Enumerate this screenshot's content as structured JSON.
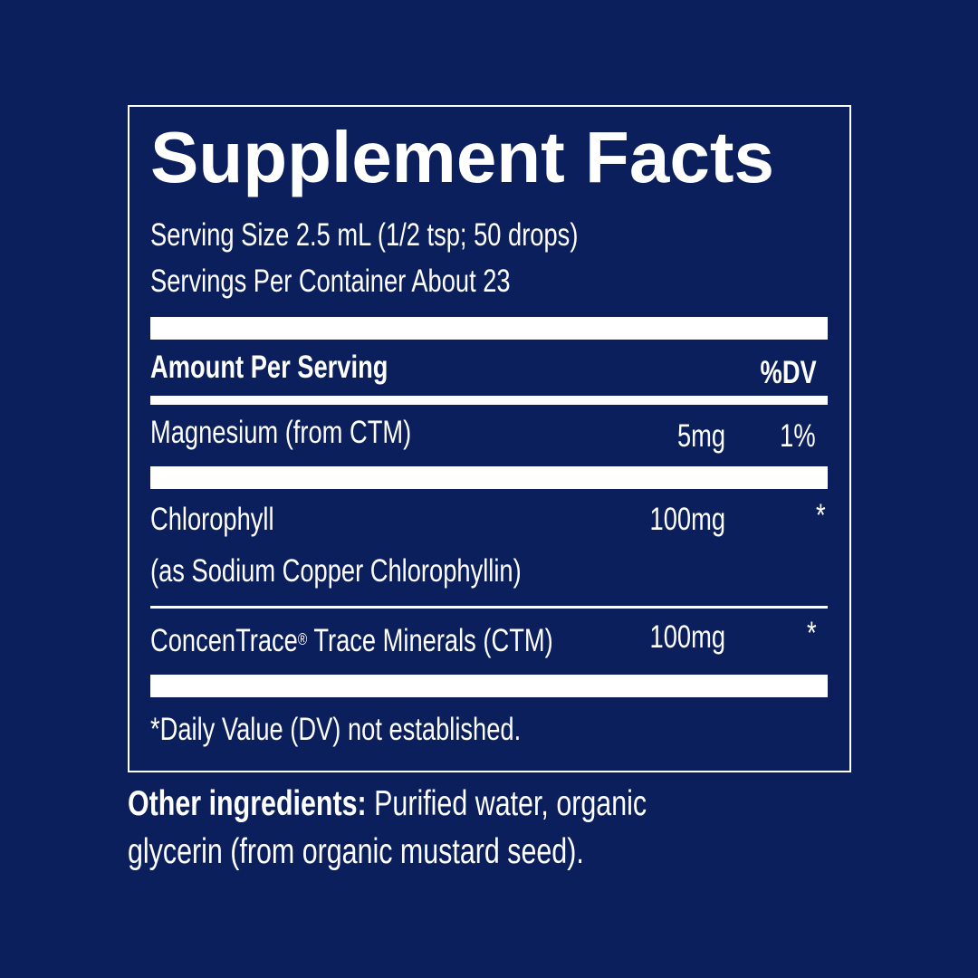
{
  "label": {
    "title": "Supplement Facts",
    "serving_size": "Serving Size 2.5 mL (1/2 tsp; 50 drops)",
    "servings_per_container": "Servings Per Container About 23",
    "header": {
      "amount": "Amount Per Serving",
      "dv": "%DV"
    },
    "rows": [
      {
        "name": "Magnesium (from CTM)",
        "amount": "5mg",
        "dv": "1%"
      },
      {
        "name": "Chlorophyll",
        "sub": "(as Sodium Copper Chlorophyllin)",
        "amount": "100mg",
        "dv": "*"
      },
      {
        "name": "ConcenTrace",
        "reg": "®",
        "name_rest": " Trace Minerals (CTM)",
        "amount": "100mg",
        "dv": "*"
      }
    ],
    "footnote": "*Daily Value (DV) not established."
  },
  "other_ingredients": {
    "label": "Other ingredients:",
    "text_line1": " Purified water, organic",
    "text_line2": "glycerin (from organic mustard seed)."
  },
  "colors": {
    "background": "#0b1f5c",
    "foreground": "#ffffff"
  }
}
